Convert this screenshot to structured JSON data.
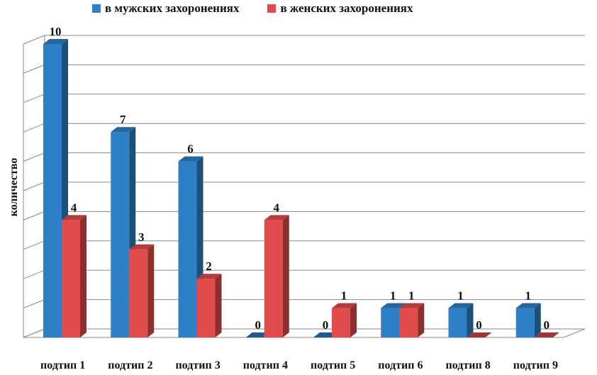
{
  "chart_data": {
    "type": "bar",
    "categories": [
      "подтип 1",
      "подтип 2",
      "подтип 3",
      "подтип 4",
      "подтип 5",
      "подтип 6",
      "подтип 8",
      "подтип 9"
    ],
    "series": [
      {
        "name": "в мужских захоронениях",
        "color": "#2e7fc6",
        "values": [
          10,
          7,
          6,
          0,
          0,
          1,
          1,
          1
        ]
      },
      {
        "name": "в женских захоронениях",
        "color": "#e04b4b",
        "values": [
          4,
          3,
          2,
          4,
          1,
          1,
          0,
          0
        ]
      }
    ],
    "ylabel": "количество",
    "ylim": [
      0,
      10
    ],
    "grid": true,
    "legend": "top"
  }
}
